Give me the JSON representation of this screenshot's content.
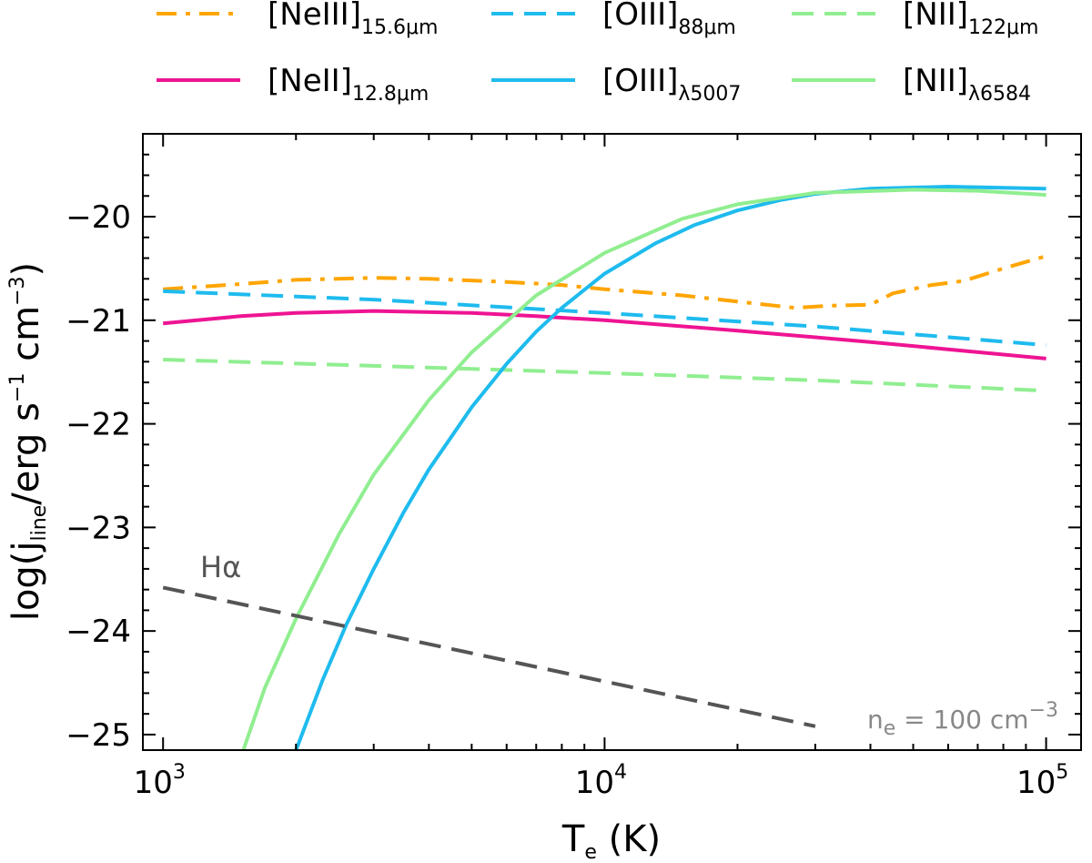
{
  "chart_data": {
    "type": "line",
    "xscale": "log",
    "xlim": [
      900,
      120000
    ],
    "ylim": [
      -25.15,
      -19.2
    ],
    "xlabel": {
      "main": "T",
      "sub": "e",
      "rest": " (K)"
    },
    "ylabel": {
      "pre": "log(j",
      "sub": "line",
      "mid": "/erg s",
      "sup1": "−1",
      "mid2": " cm",
      "sup2": "−3",
      "post": ")"
    },
    "xticks": [
      {
        "value": 1000,
        "base": "10",
        "exp": "3"
      },
      {
        "value": 10000,
        "base": "10",
        "exp": "4"
      },
      {
        "value": 100000,
        "base": "10",
        "exp": "5"
      }
    ],
    "yticks": [
      {
        "value": -20,
        "label": "−20"
      },
      {
        "value": -21,
        "label": "−21"
      },
      {
        "value": -22,
        "label": "−22"
      },
      {
        "value": -23,
        "label": "−23"
      },
      {
        "value": -24,
        "label": "−24"
      },
      {
        "value": -25,
        "label": "−25"
      }
    ],
    "series": [
      {
        "name": "NeIII",
        "label_main": "[NeIII]",
        "label_sub": "15.6μm",
        "color": "#FFA500",
        "style": "dashdot",
        "x": [
          1000,
          1500,
          2000,
          3000,
          4000,
          6000,
          8000,
          10000,
          15000,
          20000,
          27000,
          32000,
          40000,
          45000,
          55000,
          65000,
          80000,
          100000
        ],
        "y": [
          -20.7,
          -20.65,
          -20.61,
          -20.59,
          -20.6,
          -20.63,
          -20.66,
          -20.7,
          -20.76,
          -20.82,
          -20.88,
          -20.86,
          -20.85,
          -20.74,
          -20.66,
          -20.62,
          -20.5,
          -20.38
        ]
      },
      {
        "name": "OIII88",
        "label_main": "[OIII]",
        "label_sub": "88μm",
        "color": "#1EBBEE",
        "style": "dashed",
        "x": [
          1000,
          3000,
          10000,
          30000,
          100000
        ],
        "y": [
          -20.72,
          -20.8,
          -20.93,
          -21.06,
          -21.24
        ]
      },
      {
        "name": "NII122",
        "label_main": "[NII]",
        "label_sub": "122μm",
        "color": "#90EE90",
        "style": "dashed",
        "x": [
          1000,
          3000,
          10000,
          30000,
          100000
        ],
        "y": [
          -21.38,
          -21.44,
          -21.51,
          -21.58,
          -21.68
        ]
      },
      {
        "name": "NeII",
        "label_main": "[NeII]",
        "label_sub": "12.8μm",
        "color": "#EE1493",
        "style": "solid",
        "x": [
          1000,
          1500,
          2000,
          3000,
          5000,
          7000,
          10000,
          20000,
          40000,
          100000
        ],
        "y": [
          -21.03,
          -20.96,
          -20.93,
          -20.91,
          -20.93,
          -20.96,
          -21.0,
          -21.1,
          -21.21,
          -21.37
        ]
      },
      {
        "name": "OIII5007",
        "label_main": "[OIII]",
        "label_sub": "λ5007",
        "color": "#1EBBEE",
        "style": "solid",
        "x": [
          2000,
          2300,
          2600,
          3000,
          3500,
          4000,
          5000,
          6000,
          7000,
          8000,
          10000,
          13000,
          16000,
          20000,
          25000,
          30000,
          40000,
          60000,
          100000
        ],
        "y": [
          -25.15,
          -24.47,
          -23.94,
          -23.4,
          -22.86,
          -22.44,
          -21.84,
          -21.42,
          -21.11,
          -20.88,
          -20.55,
          -20.26,
          -20.08,
          -19.94,
          -19.84,
          -19.78,
          -19.73,
          -19.71,
          -19.73
        ]
      },
      {
        "name": "NII6584",
        "label_main": "[NII]",
        "label_sub": "λ6584",
        "color": "#90EE90",
        "style": "solid",
        "x": [
          1520,
          1700,
          2000,
          2500,
          3000,
          4000,
          5000,
          7000,
          10000,
          15000,
          20000,
          30000,
          50000,
          70000,
          100000
        ],
        "y": [
          -25.15,
          -24.55,
          -23.88,
          -23.07,
          -22.49,
          -21.77,
          -21.31,
          -20.76,
          -20.35,
          -20.02,
          -19.88,
          -19.77,
          -19.74,
          -19.75,
          -19.79
        ]
      },
      {
        "name": "Halpha",
        "label_main": "Hα",
        "label_sub": "",
        "color": "#555555",
        "style": "dashed",
        "x": [
          1000,
          30000
        ],
        "y": [
          -23.58,
          -24.92
        ]
      }
    ],
    "annotations": {
      "halpha": "Hα",
      "density": {
        "pre": "n",
        "sub": "e",
        "mid": " = 100 cm",
        "sup": "−3"
      }
    }
  }
}
